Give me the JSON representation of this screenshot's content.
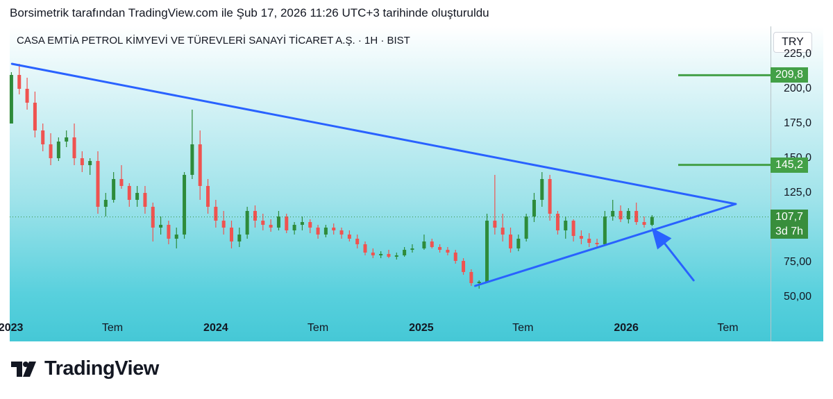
{
  "header": {
    "caption": "Borsimetrik tarafından TradingView.com ile Şub 17, 2026 11:26 UTC+3 tarihinde oluşturuldu"
  },
  "footer": {
    "brand": "TradingView"
  },
  "colors": {
    "up": "#2e8b3a",
    "down": "#ef5350",
    "trendline": "#2962ff",
    "level": "#43a047",
    "last_price_line": "#388e3c"
  },
  "chart_data": {
    "type": "candlestick",
    "title": "CASA EMTİA PETROL KİMYEVİ VE TÜREVLERİ SANAYİ TİCARET A.Ş. · 1H · BIST",
    "currency": "TRY",
    "ylim": [
      35,
      245
    ],
    "y_ticks": [
      "225,0",
      "200,0",
      "175,0",
      "150,0",
      "125,0",
      "75,00",
      "50,00"
    ],
    "y_tick_values": [
      225,
      200,
      175,
      150,
      125,
      75,
      50
    ],
    "x_ticks": [
      {
        "label": "2023",
        "date": "2023-01-01",
        "year": true
      },
      {
        "label": "Tem",
        "date": "2023-07-01",
        "year": false
      },
      {
        "label": "2024",
        "date": "2024-01-01",
        "year": true
      },
      {
        "label": "Tem",
        "date": "2024-07-01",
        "year": false
      },
      {
        "label": "2025",
        "date": "2025-01-01",
        "year": true
      },
      {
        "label": "Tem",
        "date": "2025-07-01",
        "year": false
      },
      {
        "label": "2026",
        "date": "2026-01-01",
        "year": true
      },
      {
        "label": "Tem",
        "date": "2026-07-01",
        "year": false
      }
    ],
    "last_price": "107,7",
    "countdown": "3d 7h",
    "last_price_value": 107.7,
    "horizontal_levels": [
      {
        "label": "209,8",
        "value": 209.8
      },
      {
        "label": "145,2",
        "value": 145.2
      }
    ],
    "trendlines": [
      {
        "name": "resistance",
        "from": [
          "2023-01-03",
          218
        ],
        "to": [
          "2026-07-15",
          117
        ]
      },
      {
        "name": "support",
        "from": [
          "2025-04-07",
          58
        ],
        "to": [
          "2026-07-15",
          117
        ]
      }
    ],
    "arrow": {
      "from": [
        "2026-05-01",
        62
      ],
      "to": [
        "2026-02-15",
        100
      ]
    },
    "candles": [
      [
        "2023-01-02",
        175,
        212,
        175,
        210
      ],
      [
        "2023-01-16",
        210,
        218,
        196,
        200
      ],
      [
        "2023-01-30",
        200,
        208,
        185,
        190
      ],
      [
        "2023-02-13",
        190,
        198,
        165,
        170
      ],
      [
        "2023-02-27",
        170,
        175,
        155,
        160
      ],
      [
        "2023-03-13",
        160,
        168,
        145,
        150
      ],
      [
        "2023-03-27",
        150,
        165,
        148,
        162
      ],
      [
        "2023-04-10",
        162,
        170,
        158,
        165
      ],
      [
        "2023-04-24",
        165,
        175,
        145,
        150
      ],
      [
        "2023-05-08",
        150,
        155,
        140,
        145
      ],
      [
        "2023-05-22",
        145,
        150,
        138,
        148
      ],
      [
        "2023-06-05",
        148,
        155,
        110,
        115
      ],
      [
        "2023-06-19",
        115,
        125,
        108,
        120
      ],
      [
        "2023-07-03",
        120,
        140,
        118,
        135
      ],
      [
        "2023-07-17",
        135,
        145,
        128,
        130
      ],
      [
        "2023-07-31",
        130,
        132,
        115,
        120
      ],
      [
        "2023-08-14",
        120,
        130,
        115,
        125
      ],
      [
        "2023-08-28",
        125,
        130,
        110,
        115
      ],
      [
        "2023-09-11",
        115,
        118,
        90,
        100
      ],
      [
        "2023-09-25",
        100,
        108,
        95,
        102
      ],
      [
        "2023-10-09",
        102,
        105,
        88,
        92
      ],
      [
        "2023-10-23",
        92,
        100,
        85,
        95
      ],
      [
        "2023-11-06",
        95,
        140,
        92,
        138
      ],
      [
        "2023-11-20",
        138,
        185,
        135,
        160
      ],
      [
        "2023-12-04",
        160,
        170,
        120,
        130
      ],
      [
        "2023-12-18",
        130,
        135,
        110,
        115
      ],
      [
        "2024-01-01",
        115,
        120,
        100,
        105
      ],
      [
        "2024-01-15",
        105,
        112,
        95,
        100
      ],
      [
        "2024-01-29",
        100,
        105,
        85,
        90
      ],
      [
        "2024-02-12",
        90,
        100,
        86,
        95
      ],
      [
        "2024-02-26",
        95,
        115,
        92,
        112
      ],
      [
        "2024-03-11",
        112,
        116,
        100,
        105
      ],
      [
        "2024-03-25",
        105,
        110,
        98,
        102
      ],
      [
        "2024-04-08",
        102,
        106,
        97,
        100
      ],
      [
        "2024-04-22",
        100,
        112,
        98,
        108
      ],
      [
        "2024-05-06",
        108,
        110,
        96,
        98
      ],
      [
        "2024-05-20",
        98,
        104,
        95,
        102
      ],
      [
        "2024-06-03",
        102,
        108,
        98,
        104
      ],
      [
        "2024-06-17",
        104,
        106,
        96,
        100
      ],
      [
        "2024-07-01",
        100,
        102,
        92,
        95
      ],
      [
        "2024-07-15",
        95,
        102,
        93,
        100
      ],
      [
        "2024-07-29",
        100,
        103,
        95,
        98
      ],
      [
        "2024-08-12",
        98,
        100,
        92,
        95
      ],
      [
        "2024-08-26",
        95,
        98,
        90,
        92
      ],
      [
        "2024-09-09",
        92,
        95,
        85,
        88
      ],
      [
        "2024-09-23",
        88,
        90,
        80,
        82
      ],
      [
        "2024-10-07",
        82,
        85,
        78,
        80
      ],
      [
        "2024-10-21",
        80,
        83,
        78,
        81
      ],
      [
        "2024-11-04",
        81,
        84,
        78,
        79
      ],
      [
        "2024-11-18",
        79,
        82,
        77,
        80
      ],
      [
        "2024-12-02",
        80,
        86,
        79,
        84
      ],
      [
        "2024-12-16",
        84,
        88,
        82,
        85
      ],
      [
        "2025-01-06",
        85,
        95,
        84,
        90
      ],
      [
        "2025-01-20",
        90,
        92,
        85,
        86
      ],
      [
        "2025-02-03",
        86,
        88,
        82,
        84
      ],
      [
        "2025-02-17",
        84,
        86,
        80,
        82
      ],
      [
        "2025-03-03",
        82,
        84,
        74,
        76
      ],
      [
        "2025-03-17",
        76,
        78,
        66,
        68
      ],
      [
        "2025-03-31",
        68,
        70,
        58,
        60
      ],
      [
        "2025-04-14",
        60,
        62,
        56,
        61
      ],
      [
        "2025-04-28",
        61,
        110,
        60,
        105
      ],
      [
        "2025-05-12",
        105,
        138,
        95,
        100
      ],
      [
        "2025-05-26",
        100,
        110,
        90,
        95
      ],
      [
        "2025-06-09",
        95,
        100,
        82,
        85
      ],
      [
        "2025-06-23",
        85,
        95,
        83,
        92
      ],
      [
        "2025-07-07",
        92,
        110,
        90,
        108
      ],
      [
        "2025-07-21",
        108,
        125,
        104,
        120
      ],
      [
        "2025-08-04",
        120,
        140,
        115,
        135
      ],
      [
        "2025-08-18",
        135,
        138,
        105,
        110
      ],
      [
        "2025-09-01",
        110,
        112,
        95,
        98
      ],
      [
        "2025-09-15",
        98,
        108,
        92,
        105
      ],
      [
        "2025-09-29",
        105,
        106,
        90,
        94
      ],
      [
        "2025-10-13",
        94,
        98,
        88,
        92
      ],
      [
        "2025-10-27",
        92,
        96,
        86,
        89
      ],
      [
        "2025-11-10",
        89,
        92,
        85,
        88
      ],
      [
        "2025-11-24",
        88,
        112,
        87,
        108
      ],
      [
        "2025-12-08",
        108,
        120,
        105,
        112
      ],
      [
        "2025-12-22",
        112,
        116,
        104,
        106
      ],
      [
        "2026-01-05",
        106,
        114,
        103,
        112
      ],
      [
        "2026-01-19",
        112,
        118,
        102,
        104
      ],
      [
        "2026-02-02",
        104,
        108,
        100,
        102
      ],
      [
        "2026-02-16",
        102,
        109,
        101,
        107.7
      ]
    ]
  }
}
